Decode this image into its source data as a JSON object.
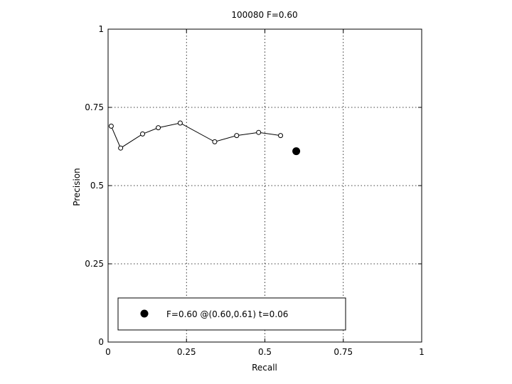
{
  "chart_data": {
    "type": "line",
    "title": "100080 F=0.60",
    "xlabel": "Recall",
    "ylabel": "Precision",
    "xlim": [
      0,
      1
    ],
    "ylim": [
      0,
      1
    ],
    "grid": true,
    "x_ticks": [
      0,
      0.25,
      0.5,
      0.75,
      1
    ],
    "y_ticks": [
      0,
      0.25,
      0.5,
      0.75,
      1
    ],
    "x_tick_labels": [
      "0",
      "0.25",
      "0.5",
      "0.75",
      "1"
    ],
    "y_tick_labels": [
      "0",
      "0.25",
      "0.5",
      "0.75",
      "1"
    ],
    "series": [
      {
        "marker": "open-circle",
        "x": [
          0.01,
          0.04,
          0.11,
          0.16,
          0.23,
          0.34,
          0.41,
          0.48,
          0.55
        ],
        "y": [
          0.69,
          0.62,
          0.665,
          0.685,
          0.7,
          0.64,
          0.66,
          0.67,
          0.66
        ],
        "color": "#000000"
      }
    ],
    "highlight_point": {
      "x": 0.6,
      "y": 0.61,
      "marker": "filled-circle",
      "color": "#000000"
    },
    "legend": {
      "entries": [
        "F=0.60 @(0.60,0.61) t=0.06"
      ],
      "placement": "bottom-left"
    }
  }
}
